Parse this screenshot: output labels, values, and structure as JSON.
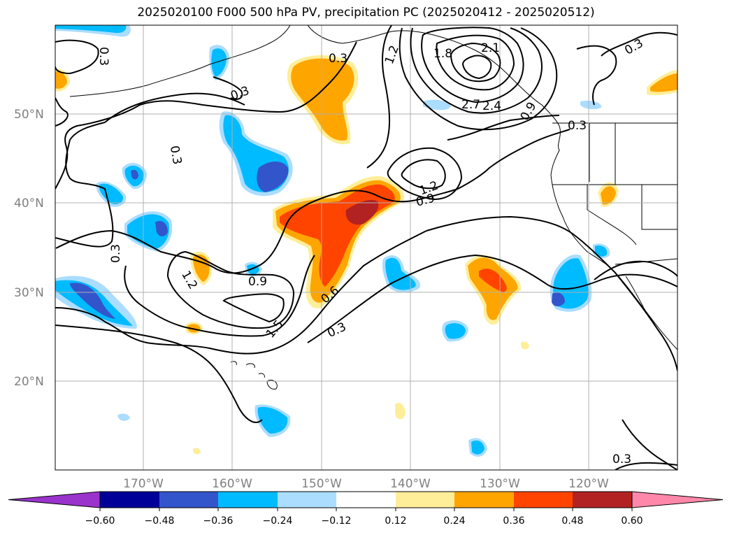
{
  "title": "2025020100 F000 500 hPa PV, precipitation PC (2025020412 - 2025020512)",
  "lat_ticks": [
    "20°N",
    "30°N",
    "40°N",
    "50°N"
  ],
  "lon_ticks": [
    "170°W",
    "160°W",
    "150°W",
    "140°W",
    "130°W",
    "120°W"
  ],
  "colorbar": {
    "ticks": [
      "−0.60",
      "−0.48",
      "−0.36",
      "−0.24",
      "−0.12",
      "0.12",
      "0.24",
      "0.36",
      "0.48",
      "0.60"
    ],
    "colors": [
      "#9933cc",
      "#000099",
      "#3355cc",
      "#00bbff",
      "#aaddff",
      "#ffffff",
      "#ffee99",
      "#ffa500",
      "#ff4400",
      "#b22222",
      "#ff88aa"
    ]
  },
  "contour_labels": [
    "0.3",
    "0.3",
    "0.3",
    "1.2",
    "1.8",
    "2.1",
    "2.7",
    "2.4",
    "0.9",
    "0.3",
    "0.3",
    "1.2",
    "0.9",
    "0.3",
    "0.9",
    "1.2",
    "1.5",
    "0.6",
    "0.3",
    "0.3",
    "0.3"
  ]
}
